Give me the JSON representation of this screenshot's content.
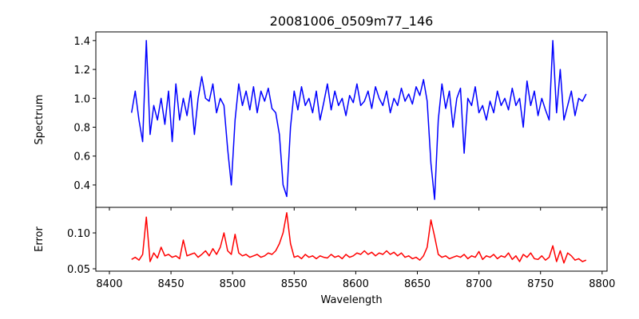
{
  "chart_data": [
    {
      "type": "line",
      "title": "20081006_0509m77_146",
      "xlabel": "",
      "ylabel": "Spectrum",
      "xlim": [
        8389,
        8804
      ],
      "ylim": [
        0.245,
        1.46
      ],
      "grid": false,
      "color": "#0000ff",
      "x_start": 8418,
      "x_step": 3,
      "xticks": [
        8400,
        8450,
        8500,
        8550,
        8600,
        8650,
        8700,
        8750,
        8800
      ],
      "yticks": [
        "0.4",
        "0.6",
        "0.8",
        "1.0",
        "1.2",
        "1.4"
      ],
      "values": [
        0.9,
        1.05,
        0.85,
        0.7,
        1.4,
        0.75,
        0.95,
        0.85,
        1.0,
        0.82,
        1.05,
        0.7,
        1.1,
        0.85,
        1.0,
        0.88,
        1.05,
        0.75,
        1.0,
        1.15,
        1.0,
        0.98,
        1.1,
        0.9,
        1.0,
        0.95,
        0.65,
        0.4,
        0.85,
        1.1,
        0.95,
        1.05,
        0.92,
        1.08,
        0.9,
        1.05,
        0.98,
        1.07,
        0.93,
        0.9,
        0.75,
        0.4,
        0.32,
        0.8,
        1.05,
        0.92,
        1.08,
        0.95,
        1.0,
        0.9,
        1.05,
        0.85,
        0.97,
        1.1,
        0.92,
        1.05,
        0.95,
        1.0,
        0.88,
        1.02,
        0.97,
        1.1,
        0.95,
        0.98,
        1.05,
        0.93,
        1.08,
        1.0,
        0.95,
        1.05,
        0.9,
        1.0,
        0.95,
        1.07,
        0.98,
        1.03,
        0.96,
        1.08,
        1.02,
        1.13,
        0.98,
        0.55,
        0.3,
        0.85,
        1.1,
        0.93,
        1.05,
        0.8,
        1.0,
        1.07,
        0.62,
        1.0,
        0.95,
        1.08,
        0.9,
        0.95,
        0.85,
        0.98,
        0.9,
        1.05,
        0.95,
        1.0,
        0.92,
        1.07,
        0.95,
        1.0,
        0.8,
        1.12,
        0.95,
        1.05,
        0.88,
        1.0,
        0.92,
        0.85,
        1.4,
        0.9,
        1.2,
        0.85,
        0.95,
        1.05,
        0.88,
        1.0,
        0.98,
        1.03
      ]
    },
    {
      "type": "line",
      "title": "",
      "xlabel": "Wavelength",
      "ylabel": "Error",
      "xlim": [
        8389,
        8804
      ],
      "ylim": [
        0.0467,
        0.1356
      ],
      "grid": false,
      "color": "#ff0000",
      "x_start": 8418,
      "x_step": 3,
      "xticks": [
        "8400",
        "8450",
        "8500",
        "8550",
        "8600",
        "8650",
        "8700",
        "8750",
        "8800"
      ],
      "yticks": [
        "0.05",
        "0.10"
      ],
      "values": [
        0.063,
        0.066,
        0.062,
        0.07,
        0.122,
        0.06,
        0.072,
        0.065,
        0.08,
        0.068,
        0.07,
        0.066,
        0.068,
        0.064,
        0.09,
        0.068,
        0.07,
        0.072,
        0.066,
        0.07,
        0.075,
        0.068,
        0.078,
        0.07,
        0.08,
        0.1,
        0.075,
        0.07,
        0.098,
        0.072,
        0.068,
        0.07,
        0.066,
        0.068,
        0.07,
        0.066,
        0.068,
        0.072,
        0.07,
        0.075,
        0.085,
        0.1,
        0.128,
        0.085,
        0.066,
        0.068,
        0.064,
        0.07,
        0.066,
        0.068,
        0.064,
        0.068,
        0.066,
        0.065,
        0.07,
        0.066,
        0.068,
        0.064,
        0.07,
        0.066,
        0.068,
        0.072,
        0.07,
        0.075,
        0.07,
        0.073,
        0.068,
        0.072,
        0.07,
        0.075,
        0.07,
        0.073,
        0.068,
        0.072,
        0.066,
        0.068,
        0.064,
        0.066,
        0.062,
        0.068,
        0.08,
        0.118,
        0.095,
        0.07,
        0.066,
        0.068,
        0.064,
        0.066,
        0.068,
        0.066,
        0.07,
        0.064,
        0.068,
        0.066,
        0.074,
        0.063,
        0.068,
        0.066,
        0.07,
        0.064,
        0.068,
        0.066,
        0.072,
        0.063,
        0.068,
        0.06,
        0.07,
        0.066,
        0.072,
        0.064,
        0.063,
        0.068,
        0.062,
        0.066,
        0.082,
        0.06,
        0.075,
        0.058,
        0.072,
        0.068,
        0.062,
        0.064,
        0.06,
        0.062
      ]
    }
  ]
}
